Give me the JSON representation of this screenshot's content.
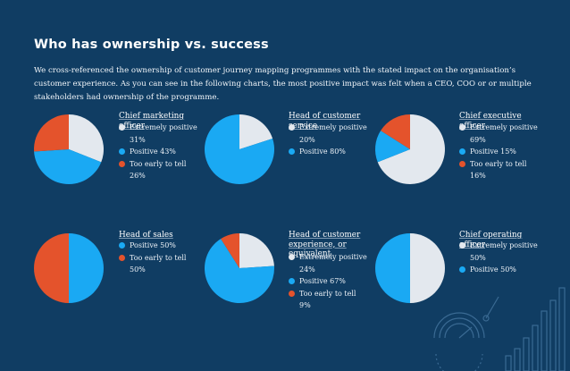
{
  "page": {
    "title": "Who has ownership vs. success",
    "intro": "We cross-referenced the ownership of customer journey mapping programmes with the stated impact on the organisation’s customer experience. As you can see in the following charts, the most positive impact was felt when a CEO, COO or or multiple stakeholders had ownership of the programme."
  },
  "colors": {
    "background": "#103d63",
    "extremely_positive": "#e3e8ee",
    "positive": "#1aa9f3",
    "too_early": "#e4532c"
  },
  "chart_data": [
    {
      "type": "pie",
      "title": "Chief marketing officer",
      "slices": [
        {
          "label": "Extremely positive 31%",
          "value": 31,
          "color": "#e3e8ee"
        },
        {
          "label": "Positive 43%",
          "value": 43,
          "color": "#1aa9f3"
        },
        {
          "label": "Too early to tell 26%",
          "value": 26,
          "color": "#e4532c"
        }
      ]
    },
    {
      "type": "pie",
      "title": "Head of customer service",
      "slices": [
        {
          "label": "Extremely positive 20%",
          "value": 20,
          "color": "#e3e8ee"
        },
        {
          "label": "Positive 80%",
          "value": 80,
          "color": "#1aa9f3"
        }
      ]
    },
    {
      "type": "pie",
      "title": "Chief executive officer",
      "slices": [
        {
          "label": "Extremely positive 69%",
          "value": 69,
          "color": "#e3e8ee"
        },
        {
          "label": "Positive 15%",
          "value": 15,
          "color": "#1aa9f3"
        },
        {
          "label": "Too early to tell 16%",
          "value": 16,
          "color": "#e4532c"
        }
      ]
    },
    {
      "type": "pie",
      "title": "Head of sales",
      "slices": [
        {
          "label": "Positive 50%",
          "value": 50,
          "color": "#1aa9f3"
        },
        {
          "label": "Too early to tell 50%",
          "value": 50,
          "color": "#e4532c"
        }
      ]
    },
    {
      "type": "pie",
      "title": "Head of customer experience, or equivalent",
      "slices": [
        {
          "label": "Extremely positive 24%",
          "value": 24,
          "color": "#e3e8ee"
        },
        {
          "label": "Positive 67%",
          "value": 67,
          "color": "#1aa9f3"
        },
        {
          "label": "Too early to tell 9%",
          "value": 9,
          "color": "#e4532c"
        }
      ]
    },
    {
      "type": "pie",
      "title": "Chief operating officer",
      "slices": [
        {
          "label": "Extremely positive 50%",
          "value": 50,
          "color": "#e3e8ee"
        },
        {
          "label": "Positive 50%",
          "value": 50,
          "color": "#1aa9f3"
        }
      ]
    }
  ]
}
